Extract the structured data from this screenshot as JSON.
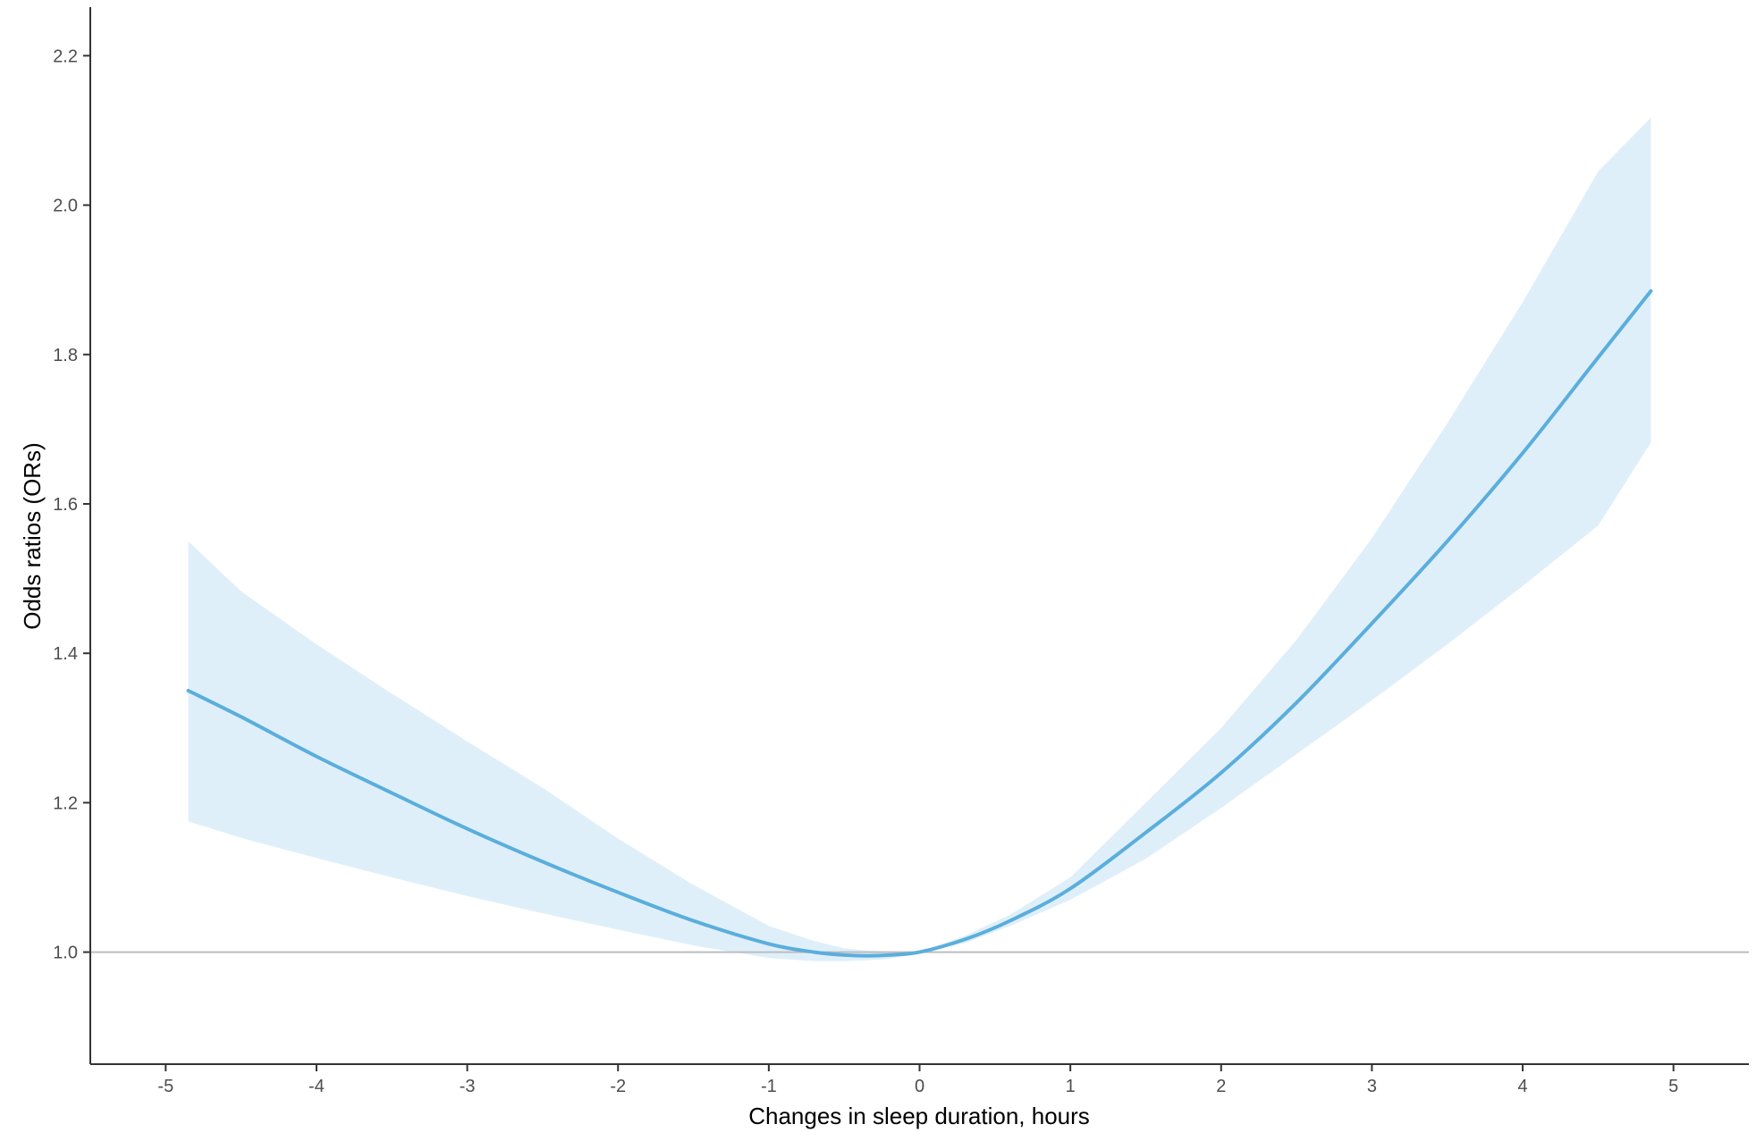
{
  "chart_data": {
    "type": "line",
    "xlabel": "Changes in sleep duration, hours",
    "ylabel": "Odds ratios (ORs)",
    "xlim": [
      -5.5,
      5.5
    ],
    "ylim": [
      0.85,
      2.265
    ],
    "x_ticks": [
      -5,
      -4,
      -3,
      -2,
      -1,
      0,
      1,
      2,
      3,
      4,
      5
    ],
    "x_tick_labels": [
      "-5",
      "-4",
      "-3",
      "-2",
      "-1",
      "0",
      "1",
      "2",
      "3",
      "4",
      "5"
    ],
    "y_ticks": [
      1.0,
      1.2,
      1.4,
      1.6,
      1.8,
      2.0,
      2.2
    ],
    "y_tick_labels": [
      "1.0",
      "1.2",
      "1.4",
      "1.6",
      "1.8",
      "2.0",
      "2.2"
    ],
    "reference_line": 1.0,
    "grid": false,
    "colors": {
      "line": "#5aaedc",
      "band": "#dfeffa",
      "reference": "#bdbdbd",
      "axis": "#333333"
    },
    "x": [
      -4.85,
      -4.5,
      -4.0,
      -3.5,
      -3.0,
      -2.5,
      -2.0,
      -1.5,
      -1.0,
      -0.7,
      -0.5,
      -0.35,
      -0.2,
      0.0,
      0.3,
      0.6,
      1.0,
      1.5,
      2.0,
      2.5,
      3.0,
      3.5,
      4.0,
      4.5,
      4.85
    ],
    "y": [
      1.35,
      1.315,
      1.262,
      1.213,
      1.165,
      1.121,
      1.08,
      1.042,
      1.011,
      1.0,
      0.996,
      0.995,
      0.996,
      1.0,
      1.017,
      1.042,
      1.085,
      1.16,
      1.24,
      1.334,
      1.44,
      1.55,
      1.668,
      1.796,
      1.885
    ],
    "lower": [
      1.175,
      1.153,
      1.126,
      1.1,
      1.075,
      1.052,
      1.03,
      1.009,
      0.992,
      0.988,
      0.988,
      0.989,
      0.991,
      1.0,
      1.012,
      1.035,
      1.07,
      1.125,
      1.193,
      1.265,
      1.337,
      1.412,
      1.49,
      1.571,
      1.682
    ],
    "upper": [
      1.55,
      1.483,
      1.412,
      1.346,
      1.282,
      1.22,
      1.152,
      1.09,
      1.035,
      1.015,
      1.005,
      1.002,
      1.001,
      1.0,
      1.022,
      1.05,
      1.1,
      1.2,
      1.3,
      1.418,
      1.554,
      1.708,
      1.87,
      2.045,
      2.117
    ]
  }
}
